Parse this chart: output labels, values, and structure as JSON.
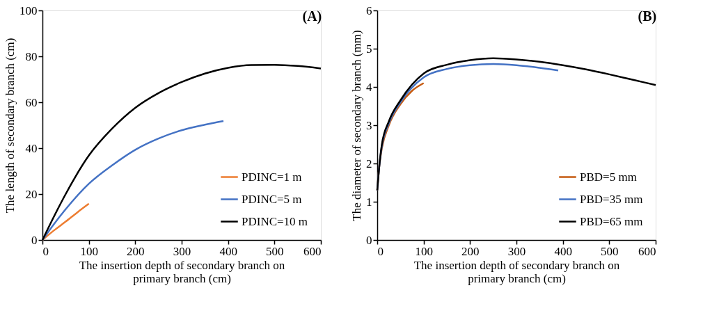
{
  "chart_data": [
    {
      "type": "line",
      "title": "(A)",
      "xlabel": "The insertion depth of secondary branch on primary branch (cm)",
      "ylabel": "The length of secondary branch (cm)",
      "xlim": [
        0,
        600
      ],
      "xticks": [
        0,
        100,
        200,
        300,
        400,
        500,
        600
      ],
      "ylim": [
        0,
        100
      ],
      "yticks": [
        0,
        20,
        40,
        60,
        80,
        100
      ],
      "grid": false,
      "legend": "bottom right",
      "marker": "none",
      "line_style": "solid",
      "series": [
        {
          "name": "PDINC=1 m",
          "color": "#ed7d31",
          "x": [
            0,
            25,
            50,
            75,
            100
          ],
          "values": [
            0,
            4.2,
            8,
            12,
            15.8
          ]
        },
        {
          "name": "PDINC=5 m",
          "color": "#4472c4",
          "x": [
            0,
            25,
            50,
            100,
            150,
            200,
            250,
            300,
            350,
            390
          ],
          "values": [
            0,
            7,
            13.4,
            24.5,
            32.5,
            39.3,
            44.2,
            47.8,
            50.2,
            51.8
          ]
        },
        {
          "name": "PDINC=10 m",
          "color": "#000000",
          "x": [
            0,
            25,
            50,
            100,
            150,
            200,
            250,
            300,
            350,
            400,
            450,
            500,
            550,
            600
          ],
          "values": [
            0,
            10.3,
            20,
            36.8,
            48.5,
            57.6,
            64,
            68.8,
            72.5,
            75,
            76.2,
            76.3,
            75.8,
            74.7
          ]
        }
      ]
    },
    {
      "type": "line",
      "title": "(B)",
      "xlabel": "The insertion depth of secondary branch on primary branch (cm)",
      "ylabel": "The diameter of secondary branch (mm)",
      "xlim": [
        0,
        600
      ],
      "xticks": [
        0,
        100,
        200,
        300,
        400,
        500,
        600
      ],
      "ylim": [
        0,
        6
      ],
      "yticks": [
        0,
        1,
        2,
        3,
        4,
        5,
        6
      ],
      "grid": false,
      "legend": "bottom right",
      "marker": "none",
      "line_style": "solid",
      "series": [
        {
          "name": "PBD=5 mm",
          "color": "#c55a11",
          "x": [
            0,
            5,
            10,
            25,
            50,
            75,
            100
          ],
          "values": [
            1.3,
            2.0,
            2.4,
            3.0,
            3.55,
            3.9,
            4.1
          ]
        },
        {
          "name": "PBD=35 mm",
          "color": "#4472c4",
          "x": [
            0,
            5,
            10,
            25,
            50,
            100,
            150,
            200,
            250,
            300,
            350,
            390
          ],
          "values": [
            1.3,
            2.0,
            2.45,
            3.05,
            3.6,
            4.25,
            4.47,
            4.57,
            4.6,
            4.57,
            4.5,
            4.43
          ]
        },
        {
          "name": "PBD=65 mm",
          "color": "#000000",
          "x": [
            0,
            5,
            10,
            25,
            50,
            100,
            150,
            200,
            250,
            300,
            350,
            400,
            450,
            500,
            550,
            600
          ],
          "values": [
            1.3,
            2.0,
            2.5,
            3.1,
            3.65,
            4.35,
            4.58,
            4.7,
            4.75,
            4.72,
            4.66,
            4.57,
            4.46,
            4.33,
            4.19,
            4.05
          ]
        }
      ]
    }
  ]
}
